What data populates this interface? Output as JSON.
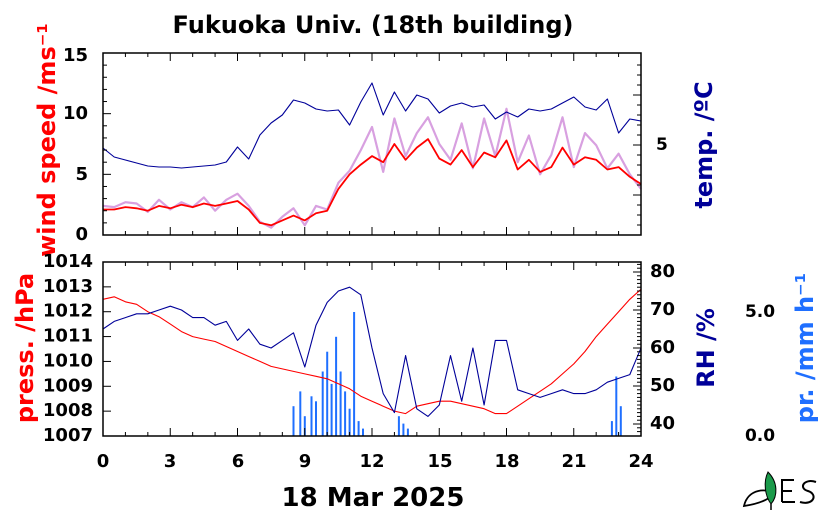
{
  "title": "Fukuoka Univ. (18th building)",
  "date_label": "18 Mar 2025",
  "colors": {
    "wind_raw": "#d8a0e0",
    "wind_avg": "#ff0000",
    "temperature": "#000099",
    "pressure": "#ff0000",
    "humidity": "#000099",
    "precipitation": "#1f6fff"
  },
  "chart_data": [
    {
      "type": "line",
      "axes": {
        "x": {
          "range": [
            0,
            24
          ],
          "ticks": [
            "0",
            "3",
            "6",
            "9",
            "12",
            "15",
            "18",
            "21",
            "24"
          ]
        },
        "y_left": {
          "label": "wind speed /ms⁻¹",
          "range": [
            0,
            15
          ],
          "ticks": [
            "0",
            "5",
            "10",
            "15"
          ]
        },
        "y_right": {
          "label": "temp. /ºC",
          "ticks": [
            "5"
          ]
        }
      },
      "series": [
        {
          "key": "wind_raw",
          "axis": "left",
          "x": [
            0,
            0.5,
            1,
            1.5,
            2,
            2.5,
            3,
            3.5,
            4,
            4.5,
            5,
            5.5,
            6,
            6.5,
            7,
            7.5,
            8,
            8.5,
            9,
            9.5,
            10,
            10.5,
            11,
            11.5,
            12,
            12.5,
            13,
            13.5,
            14,
            14.5,
            15,
            15.5,
            16,
            16.5,
            17,
            17.5,
            18,
            18.5,
            19,
            19.5,
            20,
            20.5,
            21,
            21.5,
            22,
            22.5,
            23,
            23.5,
            24
          ],
          "y": [
            2.4,
            2.3,
            2.7,
            2.6,
            1.9,
            2.9,
            2.1,
            2.7,
            2.3,
            3.1,
            2.0,
            2.9,
            3.4,
            2.4,
            1.1,
            0.6,
            1.5,
            2.2,
            0.8,
            2.4,
            2.1,
            4.3,
            5.3,
            7.0,
            8.9,
            5.2,
            9.6,
            6.5,
            8.4,
            9.7,
            7.5,
            6.2,
            9.2,
            5.5,
            9.6,
            6.5,
            10.4,
            6.0,
            8.2,
            5.0,
            6.6,
            9.7,
            5.6,
            8.4,
            7.4,
            5.5,
            6.7,
            5.0,
            3.8
          ]
        },
        {
          "key": "wind_avg",
          "axis": "left",
          "x": [
            0,
            0.5,
            1,
            1.5,
            2,
            2.5,
            3,
            3.5,
            4,
            4.5,
            5,
            5.5,
            6,
            6.5,
            7,
            7.5,
            8,
            8.5,
            9,
            9.5,
            10,
            10.5,
            11,
            11.5,
            12,
            12.5,
            13,
            13.5,
            14,
            14.5,
            15,
            15.5,
            16,
            16.5,
            17,
            17.5,
            18,
            18.5,
            19,
            19.5,
            20,
            20.5,
            21,
            21.5,
            22,
            22.5,
            23,
            23.5,
            24
          ],
          "y": [
            2.1,
            2.1,
            2.3,
            2.2,
            2.0,
            2.4,
            2.2,
            2.5,
            2.3,
            2.6,
            2.4,
            2.6,
            2.8,
            2.1,
            1.0,
            0.8,
            1.2,
            1.6,
            1.2,
            1.8,
            2.0,
            3.8,
            5.0,
            5.8,
            6.5,
            6.0,
            7.5,
            6.2,
            7.2,
            7.9,
            6.3,
            5.8,
            7.0,
            5.6,
            6.8,
            6.4,
            7.8,
            5.4,
            6.2,
            5.2,
            5.6,
            7.2,
            5.8,
            6.4,
            6.2,
            5.4,
            5.6,
            4.8,
            4.2
          ]
        },
        {
          "key": "temperature",
          "axis": "right",
          "x": [
            0,
            0.5,
            1,
            1.5,
            2,
            2.5,
            3,
            3.5,
            4,
            4.5,
            5,
            5.5,
            6,
            6.5,
            7,
            7.5,
            8,
            8.5,
            9,
            9.5,
            10,
            10.5,
            11,
            11.5,
            12,
            12.5,
            13,
            13.5,
            14,
            14.5,
            15,
            15.5,
            16,
            16.5,
            17,
            17.5,
            18,
            18.5,
            19,
            19.5,
            20,
            20.5,
            21,
            21.5,
            22,
            22.5,
            23,
            23.5,
            24
          ],
          "y": [
            4.7,
            3.8,
            3.5,
            3.2,
            2.9,
            2.8,
            2.8,
            2.7,
            2.8,
            2.9,
            3.0,
            3.3,
            4.8,
            3.6,
            6.0,
            7.2,
            8.0,
            9.5,
            9.2,
            8.6,
            8.4,
            8.5,
            7.0,
            9.3,
            11.2,
            8.0,
            10.3,
            8.4,
            10.0,
            9.6,
            8.2,
            8.9,
            9.2,
            8.8,
            9.0,
            7.6,
            8.3,
            7.8,
            8.6,
            8.4,
            8.6,
            9.2,
            9.8,
            8.8,
            8.5,
            9.6,
            6.2,
            7.6,
            7.4
          ]
        }
      ]
    },
    {
      "type": "line",
      "axes": {
        "x": {
          "label": "18 Mar 2025",
          "range": [
            0,
            24
          ],
          "ticks": [
            "0",
            "3",
            "6",
            "9",
            "12",
            "15",
            "18",
            "21",
            "24"
          ]
        },
        "y_left": {
          "label": "press. /hPa",
          "range": [
            1007,
            1014
          ],
          "ticks": [
            "1007",
            "1008",
            "1009",
            "1010",
            "1011",
            "1012",
            "1013",
            "1014"
          ]
        },
        "y_right": {
          "label": "RH /%",
          "range": [
            37,
            82
          ],
          "ticks": [
            "40",
            "50",
            "60",
            "70",
            "80"
          ]
        },
        "y_far_right": {
          "label": "pr. /mm h⁻¹",
          "range": [
            0,
            7.5
          ],
          "ticks": [
            "0.0",
            "5.0"
          ]
        }
      },
      "series": [
        {
          "key": "pressure",
          "axis": "left",
          "x": [
            0,
            0.5,
            1,
            1.5,
            2,
            2.5,
            3,
            3.5,
            4,
            4.5,
            5,
            5.5,
            6,
            6.5,
            7,
            7.5,
            8,
            8.5,
            9,
            9.5,
            10,
            10.5,
            11,
            11.5,
            12,
            12.5,
            13,
            13.5,
            14,
            14.5,
            15,
            15.5,
            16,
            16.5,
            17,
            17.5,
            18,
            18.5,
            19,
            19.5,
            20,
            20.5,
            21,
            21.5,
            22,
            22.5,
            23,
            23.5,
            24
          ],
          "y": [
            1012.5,
            1012.6,
            1012.4,
            1012.3,
            1012.0,
            1011.8,
            1011.5,
            1011.2,
            1011.0,
            1010.9,
            1010.8,
            1010.6,
            1010.4,
            1010.2,
            1010.0,
            1009.8,
            1009.7,
            1009.6,
            1009.5,
            1009.4,
            1009.3,
            1009.1,
            1008.9,
            1008.6,
            1008.4,
            1008.2,
            1008.0,
            1007.9,
            1008.2,
            1008.3,
            1008.4,
            1008.4,
            1008.3,
            1008.2,
            1008.1,
            1007.9,
            1007.9,
            1008.2,
            1008.5,
            1008.8,
            1009.1,
            1009.5,
            1009.9,
            1010.4,
            1011.0,
            1011.5,
            1012.0,
            1012.5,
            1012.9
          ]
        },
        {
          "key": "humidity",
          "axis": "right",
          "x": [
            0,
            0.5,
            1,
            1.5,
            2,
            2.5,
            3,
            3.5,
            4,
            4.5,
            5,
            5.5,
            6,
            6.5,
            7,
            7.5,
            8,
            8.5,
            9,
            9.5,
            10,
            10.5,
            11,
            11.5,
            12,
            12.5,
            13,
            13.5,
            14,
            14.5,
            15,
            15.5,
            16,
            16.5,
            17,
            17.5,
            18,
            18.5,
            19,
            19.5,
            20,
            20.5,
            21,
            21.5,
            22,
            22.5,
            23,
            23.5,
            24
          ],
          "y": [
            65,
            67,
            68,
            69,
            69,
            70,
            71,
            70,
            68,
            68,
            66,
            67,
            62,
            65,
            61,
            60,
            62,
            64,
            55,
            66,
            72,
            75,
            76,
            74,
            60,
            48,
            43,
            58,
            44,
            42,
            45,
            58,
            46,
            60,
            45,
            62,
            62,
            49,
            48,
            47,
            48,
            49,
            48,
            48,
            49,
            51,
            52,
            53,
            60
          ]
        }
      ],
      "precipitation": {
        "axis": "far_right",
        "x": [
          8.5,
          8.8,
          9.0,
          9.3,
          9.5,
          9.8,
          10.0,
          10.2,
          10.4,
          10.6,
          10.8,
          11.0,
          11.2,
          11.4,
          11.6,
          13.2,
          13.4,
          13.6,
          22.7,
          22.9,
          23.1
        ],
        "y": [
          1.2,
          1.8,
          0.8,
          1.6,
          1.4,
          2.6,
          3.4,
          2.1,
          4.0,
          2.6,
          1.8,
          1.1,
          5.0,
          0.6,
          0.3,
          0.8,
          0.5,
          0.3,
          0.6,
          2.4,
          1.2
        ]
      }
    }
  ]
}
